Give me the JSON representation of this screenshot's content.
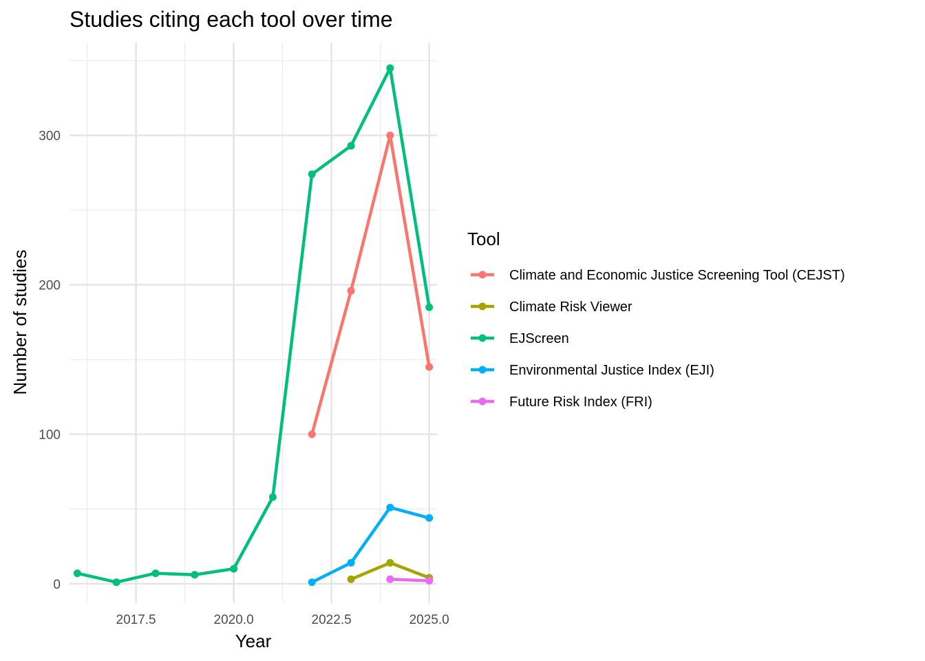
{
  "chart_data": {
    "type": "line",
    "title": "Studies citing each tool over time",
    "xlabel": "Year",
    "ylabel": "Number of studies",
    "xlim": [
      2015.8,
      2025.2
    ],
    "ylim": [
      -13,
      362
    ],
    "x_ticks": [
      2017.5,
      2020.0,
      2022.5,
      2025.0
    ],
    "x_tick_labels": [
      "2017.5",
      "2020.0",
      "2022.5",
      "2025.0"
    ],
    "y_ticks": [
      0,
      100,
      200,
      300
    ],
    "y_tick_labels": [
      "0",
      "100",
      "200",
      "300"
    ],
    "grid": true,
    "legend": {
      "title": "Tool",
      "position": "right"
    },
    "series": [
      {
        "name": "Climate and Economic Justice Screening Tool (CEJST)",
        "color": "#F8766D",
        "x": [
          2022,
          2023,
          2024,
          2025
        ],
        "y": [
          100,
          196,
          300,
          145
        ]
      },
      {
        "name": "Climate Risk Viewer",
        "color": "#A3A500",
        "x": [
          2023,
          2024,
          2025
        ],
        "y": [
          3,
          14,
          4
        ]
      },
      {
        "name": "EJScreen",
        "color": "#00BF7D",
        "x": [
          2016,
          2017,
          2018,
          2019,
          2020,
          2021,
          2022,
          2023,
          2024,
          2025
        ],
        "y": [
          7,
          1,
          7,
          6,
          10,
          58,
          274,
          293,
          345,
          185
        ]
      },
      {
        "name": "Environmental Justice Index (EJI)",
        "color": "#00B0F6",
        "x": [
          2022,
          2023,
          2024,
          2025
        ],
        "y": [
          1,
          14,
          51,
          44
        ]
      },
      {
        "name": "Future Risk Index (FRI)",
        "color": "#E76BF3",
        "x": [
          2024,
          2025
        ],
        "y": [
          3,
          2
        ]
      }
    ]
  }
}
